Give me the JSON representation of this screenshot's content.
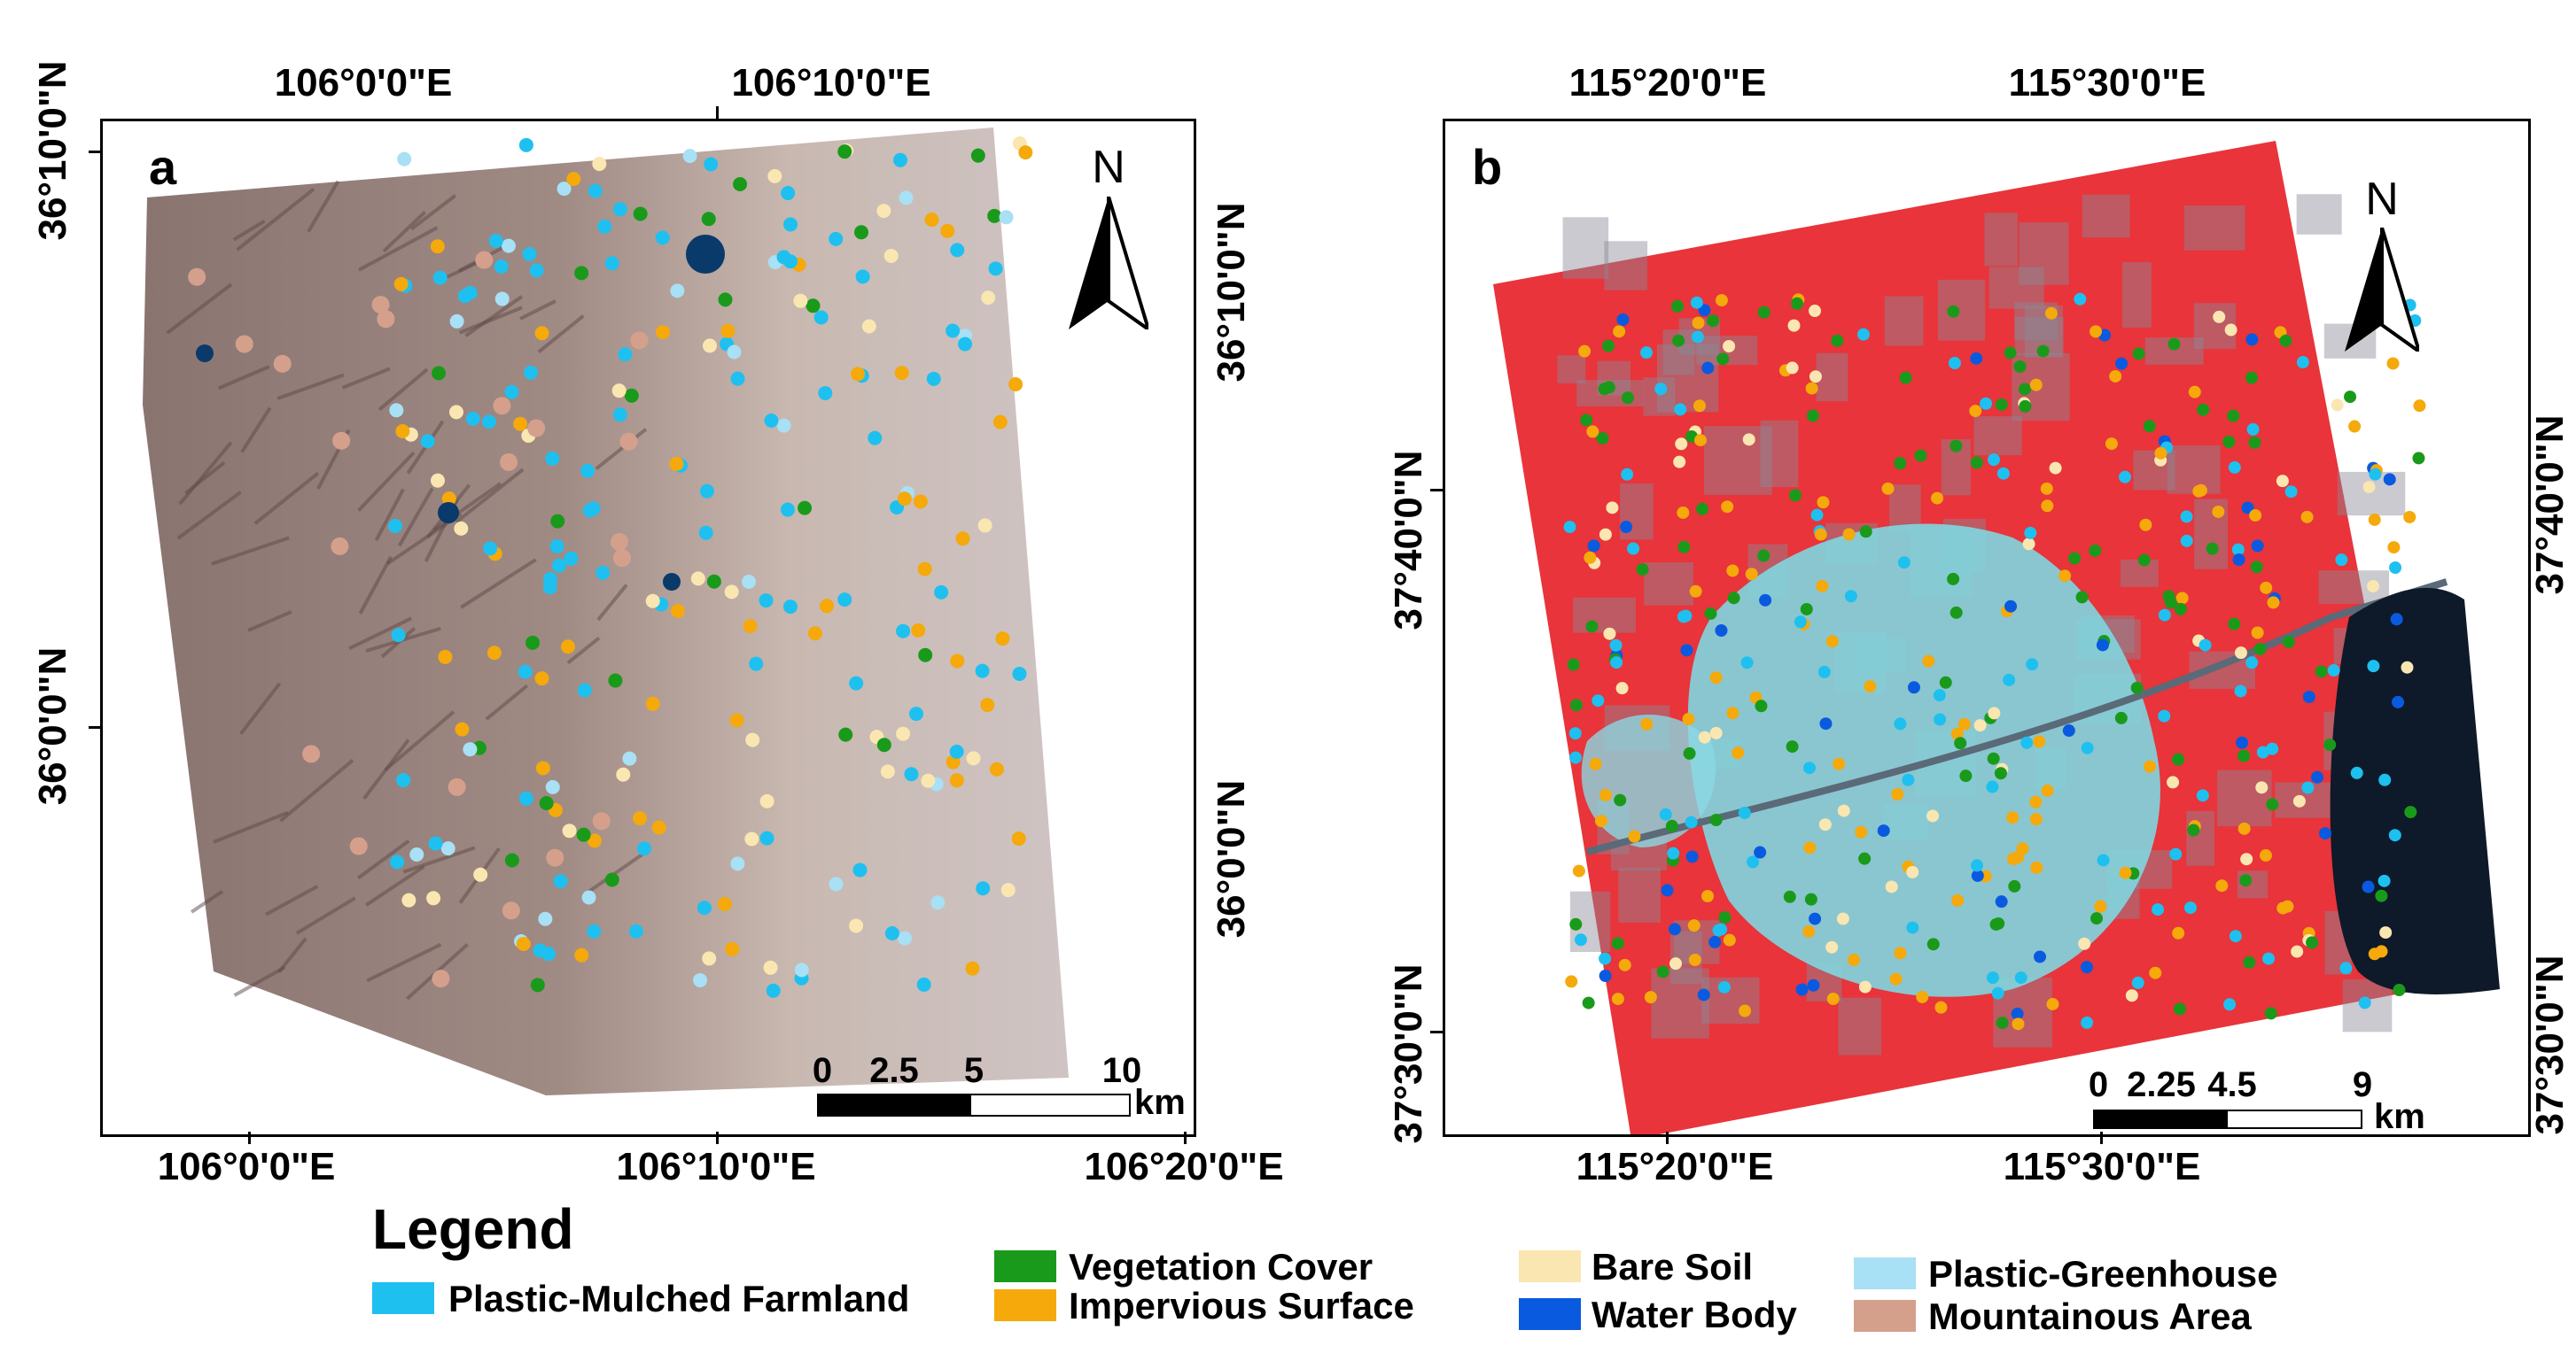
{
  "panels": [
    {
      "letter": "a",
      "top_ticks": [
        "106°0'0\"E",
        "106°10'0\"E"
      ],
      "bottom_ticks": [
        "106°0'0\"E",
        "106°10'0\"E",
        "106°20'0\"E"
      ],
      "left_ticks": [
        "36°10'0\"N",
        "36°0'0\"N"
      ],
      "right_ticks": [
        "36°10'0\"N",
        "36°0'0\"N"
      ],
      "north": "N",
      "scale_labels": [
        "0",
        "2.5",
        "5",
        "10"
      ],
      "scale_unit": "km"
    },
    {
      "letter": "b",
      "top_ticks": [
        "115°20'0\"E",
        "115°30'0\"E"
      ],
      "bottom_ticks": [
        "115°20'0\"E",
        "115°30'0\"E"
      ],
      "left_ticks": [
        "37°40'0\"N",
        "37°30'0\"N"
      ],
      "right_ticks": [
        "37°40'0\"N",
        "37°30'0\"N"
      ],
      "north": "N",
      "scale_labels": [
        "0",
        "2.25",
        "4.5",
        "9"
      ],
      "scale_unit": "km"
    }
  ],
  "legend": {
    "title": "Legend",
    "items": [
      {
        "key": "pmf",
        "label": "Plastic-Mulched Farmland",
        "color": "#1ec0f0"
      },
      {
        "key": "veg",
        "label": "Vegetation Cover",
        "color": "#1a9a1a"
      },
      {
        "key": "imp",
        "label": "Impervious Surface",
        "color": "#f5a90a"
      },
      {
        "key": "soil",
        "label": "Bare Soil",
        "color": "#fae6b0"
      },
      {
        "key": "water",
        "label": "Water Body",
        "color": "#0a5ae0"
      },
      {
        "key": "greenhouse",
        "label": "Plastic-Greenhouse",
        "color": "#a8e0f5"
      },
      {
        "key": "mountain",
        "label": "Mountainous Area",
        "color": "#d4a08c"
      }
    ]
  }
}
